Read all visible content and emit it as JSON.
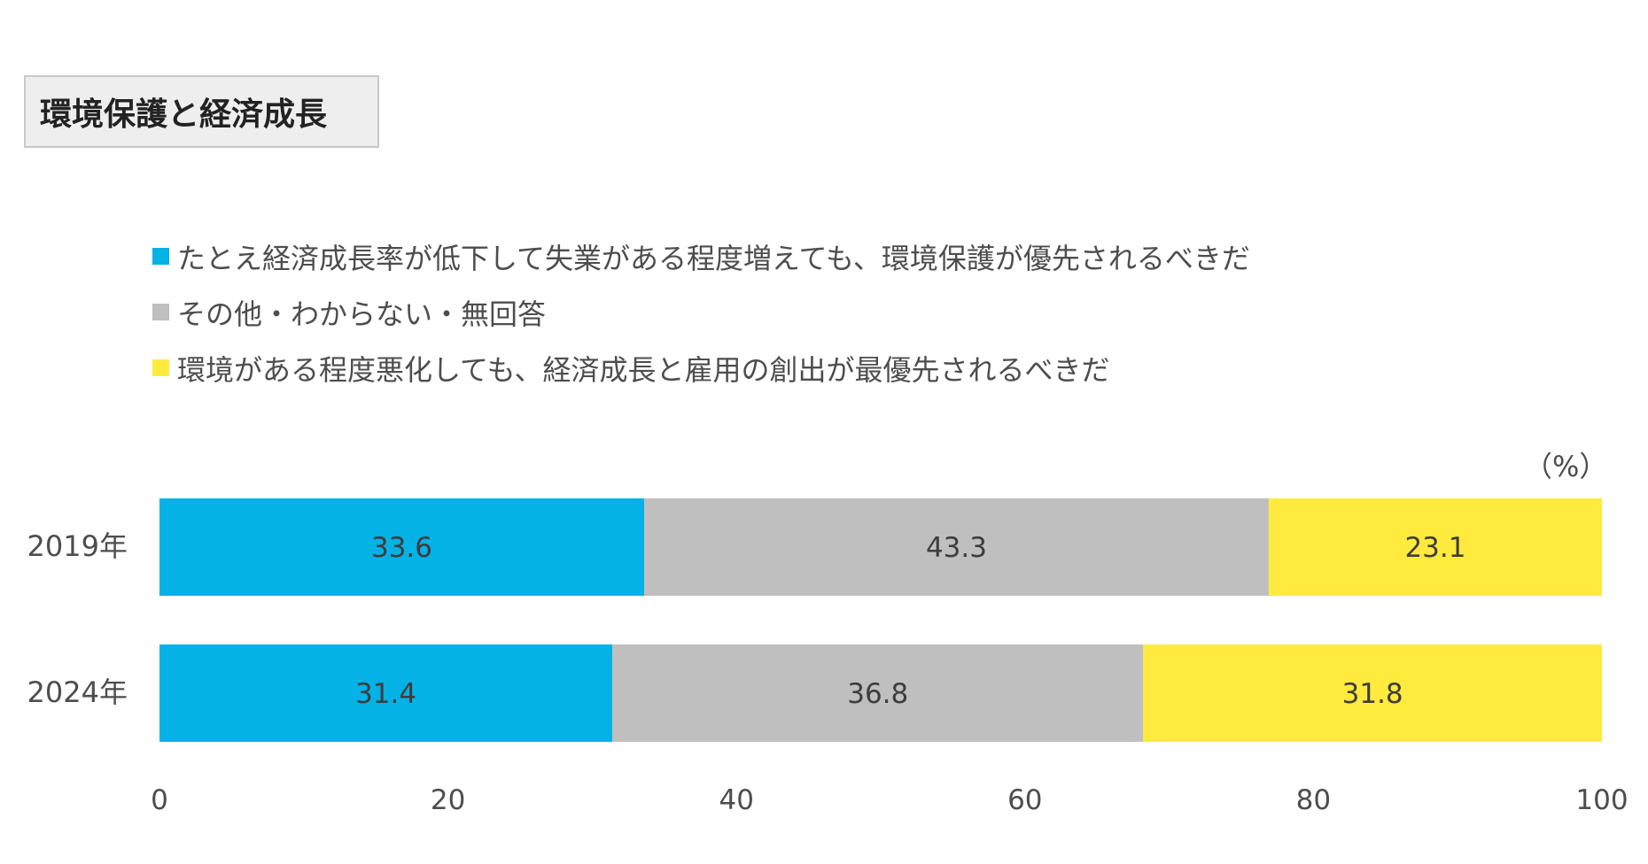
{
  "title": "環境保護と経済成長",
  "unit_label": "（%）",
  "chart_data": {
    "type": "bar",
    "orientation": "horizontal",
    "stacked": true,
    "title": "環境保護と経済成長",
    "categories": [
      "2019年",
      "2024年"
    ],
    "series": [
      {
        "name": "たとえ経済成長率が低下して失業がある程度増えても、環境保護が優先されるべきだ",
        "color": "#04b2e6",
        "values": [
          33.6,
          31.4
        ]
      },
      {
        "name": "その他・わからない・無回答",
        "color": "#bfbfbf",
        "values": [
          43.3,
          36.8
        ]
      },
      {
        "name": "環境がある程度悪化しても、経済成長と雇用の創出が最優先されるべきだ",
        "color": "#ffea3d",
        "values": [
          23.1,
          31.8
        ]
      }
    ],
    "xlim": [
      0,
      100
    ],
    "xticks": [
      0,
      20,
      40,
      60,
      80,
      100
    ],
    "xlabel": "",
    "ylabel": "",
    "legend_position": "top",
    "grid": false
  }
}
